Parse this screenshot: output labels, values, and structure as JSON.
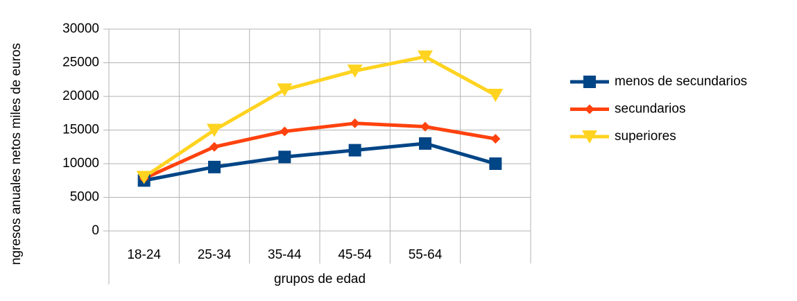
{
  "chart_data": {
    "type": "line",
    "y_label": "ngresos anuales netos miles de euros",
    "x_label": "grupos de edad",
    "categories": [
      "18-24",
      "25-34",
      "35-44",
      "45-54",
      "55-64",
      null
    ],
    "series": [
      {
        "name": "menos de secundarios",
        "color": "#004586",
        "marker": "square",
        "values": [
          7500,
          9500,
          11000,
          12000,
          13000,
          10000
        ]
      },
      {
        "name": "secundarios",
        "color": "#ff420e",
        "marker": "diamond",
        "values": [
          7800,
          12500,
          14800,
          16000,
          15500,
          13700
        ]
      },
      {
        "name": "superiores",
        "color": "#ffd320",
        "marker": "triangle-down",
        "values": [
          8000,
          15000,
          21000,
          23800,
          25900,
          20200
        ]
      }
    ],
    "ylim": [
      0,
      30000
    ],
    "yticks": [
      0,
      5000,
      10000,
      15000,
      20000,
      25000,
      30000
    ],
    "grid": true,
    "legend": "right"
  }
}
